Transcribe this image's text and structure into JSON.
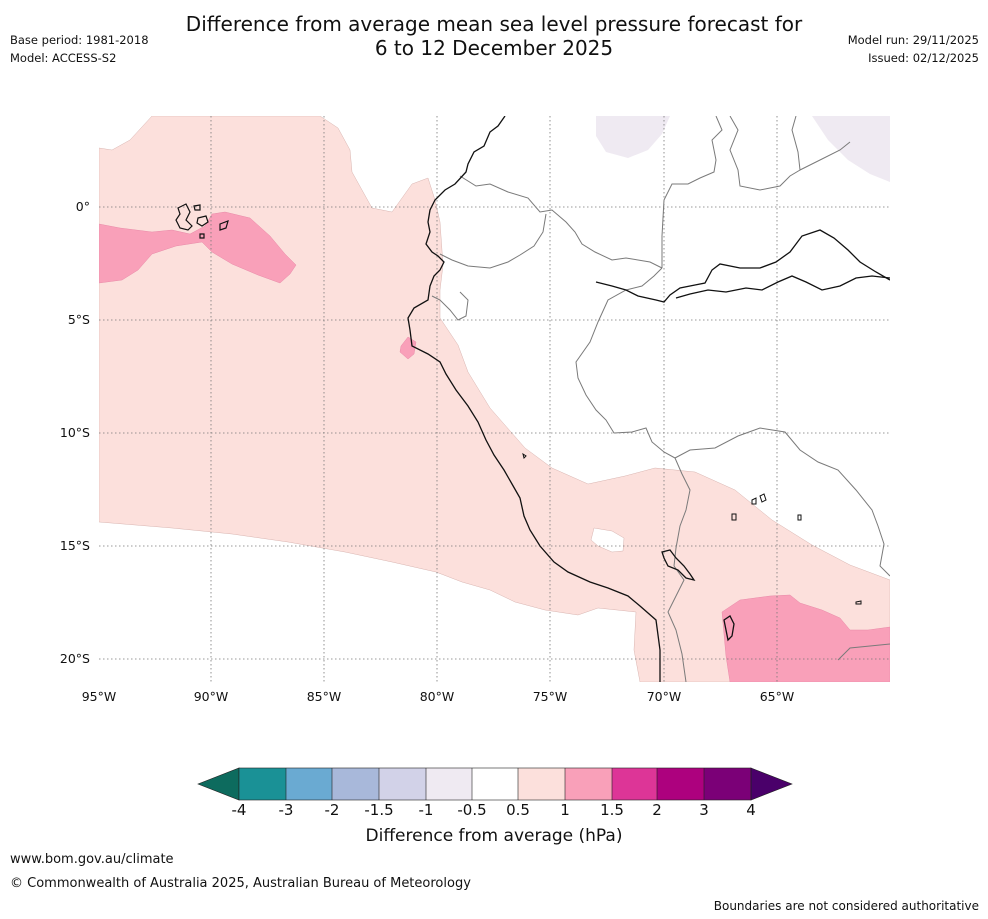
{
  "header": {
    "title_line1": "Difference from average mean sea level pressure forecast for",
    "title_line2": "6 to 12 December 2025",
    "base_period": "Base period: 1981-2018",
    "model": "Model: ACCESS-S2",
    "model_run": "Model run: 29/11/2025",
    "issued": "Issued: 02/12/2025"
  },
  "map": {
    "lat_labels": [
      "0°",
      "5°S",
      "10°S",
      "15°S",
      "20°S"
    ],
    "lon_labels": [
      "95°W",
      "90°W",
      "85°W",
      "80°W",
      "75°W",
      "70°W",
      "65°W"
    ],
    "region": "Western South America and adjacent Pacific",
    "gridlines": true
  },
  "colorbar": {
    "title": "Difference from average (hPa)",
    "ticks": [
      "-4",
      "-3",
      "-2",
      "-1.5",
      "-1",
      "-0.5",
      "0.5",
      "1",
      "1.5",
      "2",
      "3",
      "4"
    ],
    "colors": {
      "lt_minus4": "#0d6b5e",
      "minus4_to_minus3": "#1a9196",
      "minus3_to_minus2": "#6aaad2",
      "minus2_to_minus1_5": "#a8b8da",
      "minus1_5_to_minus1": "#d2d2e8",
      "minus1_to_minus0_5": "#efeaf2",
      "minus0_5_to_0_5": "#ffffff",
      "0_5_to_1": "#fce0dc",
      "1_to_1_5": "#f9a0b9",
      "1_5_to_2": "#dd3597",
      "2_to_3": "#ad017e",
      "3_to_4": "#7b0077",
      "gt_4": "#4a006a"
    }
  },
  "footer": {
    "website": "www.bom.gov.au/climate",
    "copyright": "© Commonwealth of Australia 2025, Australian Bureau of Meteorology",
    "disclaimer": "Boundaries are not considered authoritative"
  }
}
